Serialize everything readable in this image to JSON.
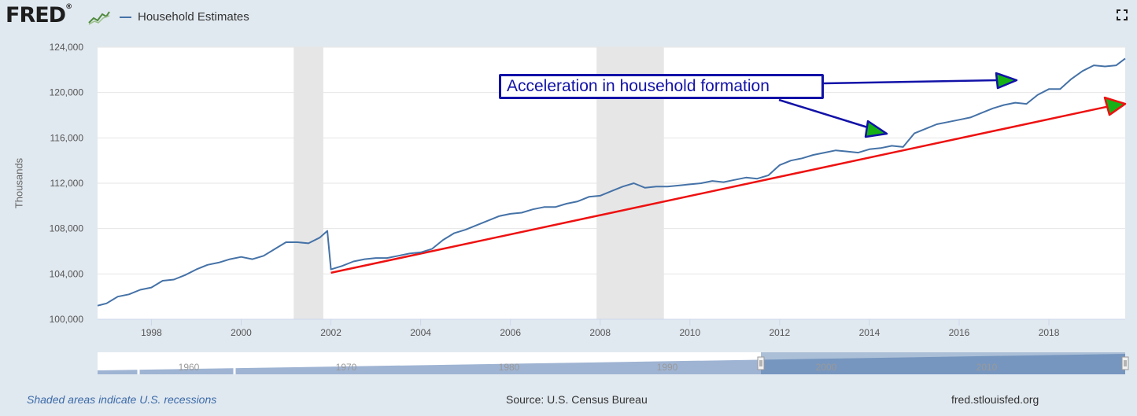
{
  "header": {
    "logo_text": "FRED",
    "logo_mark": "®",
    "series_label": "Household Estimates"
  },
  "icons": {
    "logo_chart": "mini-line-chart-icon",
    "fullscreen": "fullscreen-icon"
  },
  "colors": {
    "series": "#4572a7",
    "trend": "#ee1111",
    "annotation": "#1212a8",
    "arrow_fill": "#17b117",
    "recession": "#e6e6e6",
    "page_bg": "#e1e9f0"
  },
  "annotation": {
    "text": "Acceleration in household formation"
  },
  "footer": {
    "recession_note": "Shaded areas indicate U.S. recessions",
    "source": "Source: U.S. Census Bureau",
    "site": "fred.stlouisfed.org"
  },
  "chart_data": {
    "type": "line",
    "title": "",
    "ylabel": "Thousands",
    "xlabel": "",
    "xlim": [
      1996.8,
      2019.7
    ],
    "ylim": [
      100000,
      124000
    ],
    "y_ticks": [
      100000,
      104000,
      108000,
      112000,
      116000,
      120000,
      124000
    ],
    "y_tick_labels": [
      "100,000",
      "104,000",
      "108,000",
      "112,000",
      "116,000",
      "120,000",
      "124,000"
    ],
    "x_ticks": [
      1998,
      2000,
      2002,
      2004,
      2006,
      2008,
      2010,
      2012,
      2014,
      2016,
      2018
    ],
    "x_tick_labels": [
      "1998",
      "2000",
      "2002",
      "2004",
      "2006",
      "2008",
      "2010",
      "2012",
      "2014",
      "2016",
      "2018"
    ],
    "grid": true,
    "legend": "top-left",
    "recessions": [
      [
        2001.17,
        2001.83
      ],
      [
        2007.92,
        2009.42
      ]
    ],
    "series": [
      {
        "name": "Household Estimates",
        "x": [
          1996.8,
          1997.0,
          1997.25,
          1997.5,
          1997.75,
          1998.0,
          1998.25,
          1998.5,
          1998.75,
          1999.0,
          1999.25,
          1999.5,
          1999.75,
          2000.0,
          2000.25,
          2000.5,
          2000.75,
          2001.0,
          2001.25,
          2001.5,
          2001.75,
          2001.92,
          2002.0,
          2002.25,
          2002.5,
          2002.75,
          2003.0,
          2003.25,
          2003.5,
          2003.75,
          2004.0,
          2004.25,
          2004.5,
          2004.75,
          2005.0,
          2005.25,
          2005.5,
          2005.75,
          2006.0,
          2006.25,
          2006.5,
          2006.75,
          2007.0,
          2007.25,
          2007.5,
          2007.75,
          2008.0,
          2008.25,
          2008.5,
          2008.75,
          2009.0,
          2009.25,
          2009.5,
          2009.75,
          2010.0,
          2010.25,
          2010.5,
          2010.75,
          2011.0,
          2011.25,
          2011.5,
          2011.75,
          2012.0,
          2012.25,
          2012.5,
          2012.75,
          2013.0,
          2013.25,
          2013.5,
          2013.75,
          2014.0,
          2014.25,
          2014.5,
          2014.75,
          2015.0,
          2015.25,
          2015.5,
          2015.75,
          2016.0,
          2016.25,
          2016.5,
          2016.75,
          2017.0,
          2017.25,
          2017.5,
          2017.75,
          2018.0,
          2018.25,
          2018.5,
          2018.75,
          2019.0,
          2019.25,
          2019.5,
          2019.7
        ],
        "values": [
          101200,
          101400,
          102000,
          102200,
          102600,
          102800,
          103400,
          103500,
          103900,
          104400,
          104800,
          105000,
          105300,
          105500,
          105300,
          105600,
          106200,
          106800,
          106800,
          106700,
          107200,
          107800,
          104400,
          104700,
          105100,
          105300,
          105400,
          105400,
          105600,
          105800,
          105900,
          106200,
          107000,
          107600,
          107900,
          108300,
          108700,
          109100,
          109300,
          109400,
          109700,
          109900,
          109900,
          110200,
          110400,
          110800,
          110900,
          111300,
          111700,
          112000,
          111600,
          111700,
          111700,
          111800,
          111900,
          112000,
          112200,
          112100,
          112300,
          112500,
          112400,
          112700,
          113600,
          114000,
          114200,
          114500,
          114700,
          114900,
          114800,
          114700,
          115000,
          115100,
          115300,
          115200,
          116400,
          116800,
          117200,
          117400,
          117600,
          117800,
          118200,
          118600,
          118900,
          119100,
          119000,
          119800,
          120300,
          120300,
          121200,
          121900,
          122400,
          122300,
          122400,
          123000
        ]
      }
    ],
    "trend_line": {
      "x": [
        2002.0,
        2019.7
      ],
      "values": [
        104100,
        119000
      ]
    },
    "navigator_labels": [
      "1960",
      "1970",
      "1980",
      "1990",
      "2000",
      "2010"
    ]
  }
}
